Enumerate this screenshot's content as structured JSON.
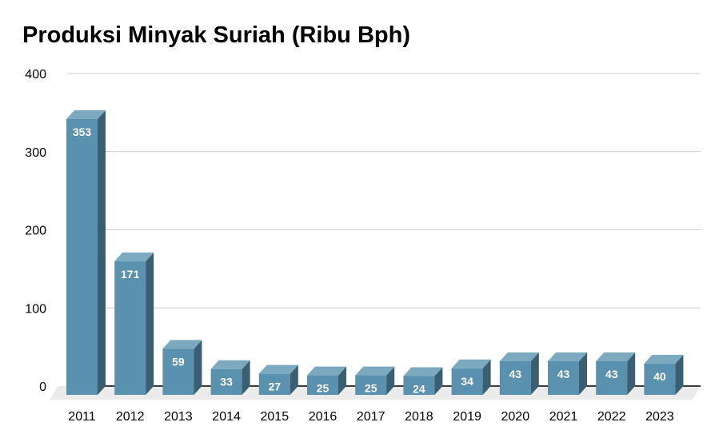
{
  "chart_data": {
    "type": "bar",
    "title": "Produksi Minyak Suriah (Ribu Bph)",
    "xlabel": "",
    "ylabel": "",
    "categories": [
      "2011",
      "2012",
      "2013",
      "2014",
      "2015",
      "2016",
      "2017",
      "2018",
      "2019",
      "2020",
      "2021",
      "2022",
      "2023"
    ],
    "values": [
      353,
      171,
      59,
      33,
      27,
      25,
      25,
      24,
      34,
      43,
      43,
      43,
      40
    ],
    "ylim": [
      0,
      400
    ],
    "yticks": [
      "0",
      "100",
      "200",
      "300",
      "400"
    ],
    "grid": true,
    "colors": {
      "front": "#5a91ae",
      "side": "#3a5f70",
      "top": "#7aa9c0"
    }
  }
}
